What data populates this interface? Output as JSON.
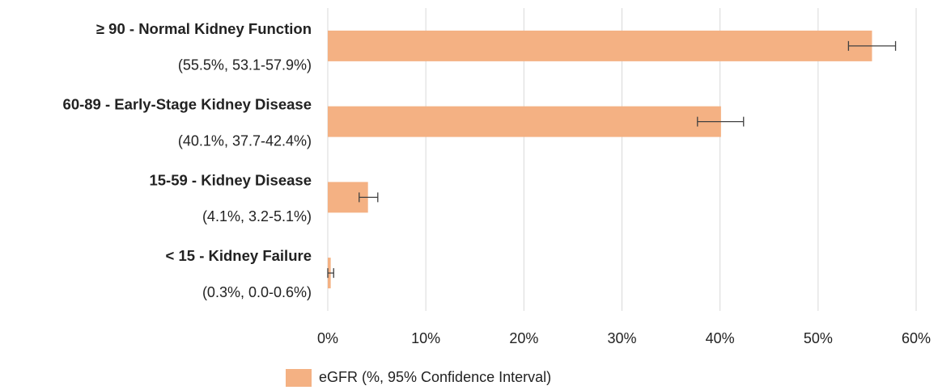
{
  "chart_data": {
    "type": "bar",
    "orientation": "horizontal",
    "categories": [
      "≥ 90 - Normal Kidney Function",
      "60-89 - Early-Stage Kidney Disease",
      "15-59 - Kidney Disease",
      "< 15 - Kidney Failure"
    ],
    "series": [
      {
        "name": "eGFR (%, 95% Confidence Interval)",
        "color": "#f4b183",
        "values": [
          55.5,
          40.1,
          4.1,
          0.3
        ],
        "ci_low": [
          53.1,
          37.7,
          3.2,
          0.0
        ],
        "ci_high": [
          57.9,
          42.4,
          5.1,
          0.6
        ],
        "value_labels": [
          "(55.5%, 53.1-57.9%)",
          "(40.1%, 37.7-42.4%)",
          "(4.1%, 3.2-5.1%)",
          "(0.3%, 0.0-0.6%)"
        ]
      }
    ],
    "xlim": [
      0,
      60
    ],
    "xticks": [
      {
        "value": 0,
        "label": "0%"
      },
      {
        "value": 10,
        "label": "10%"
      },
      {
        "value": 20,
        "label": "20%"
      },
      {
        "value": 30,
        "label": "30%"
      },
      {
        "value": 40,
        "label": "40%"
      },
      {
        "value": 50,
        "label": "50%"
      },
      {
        "value": 60,
        "label": "60%"
      }
    ],
    "grid": true,
    "legend": "bottom"
  }
}
